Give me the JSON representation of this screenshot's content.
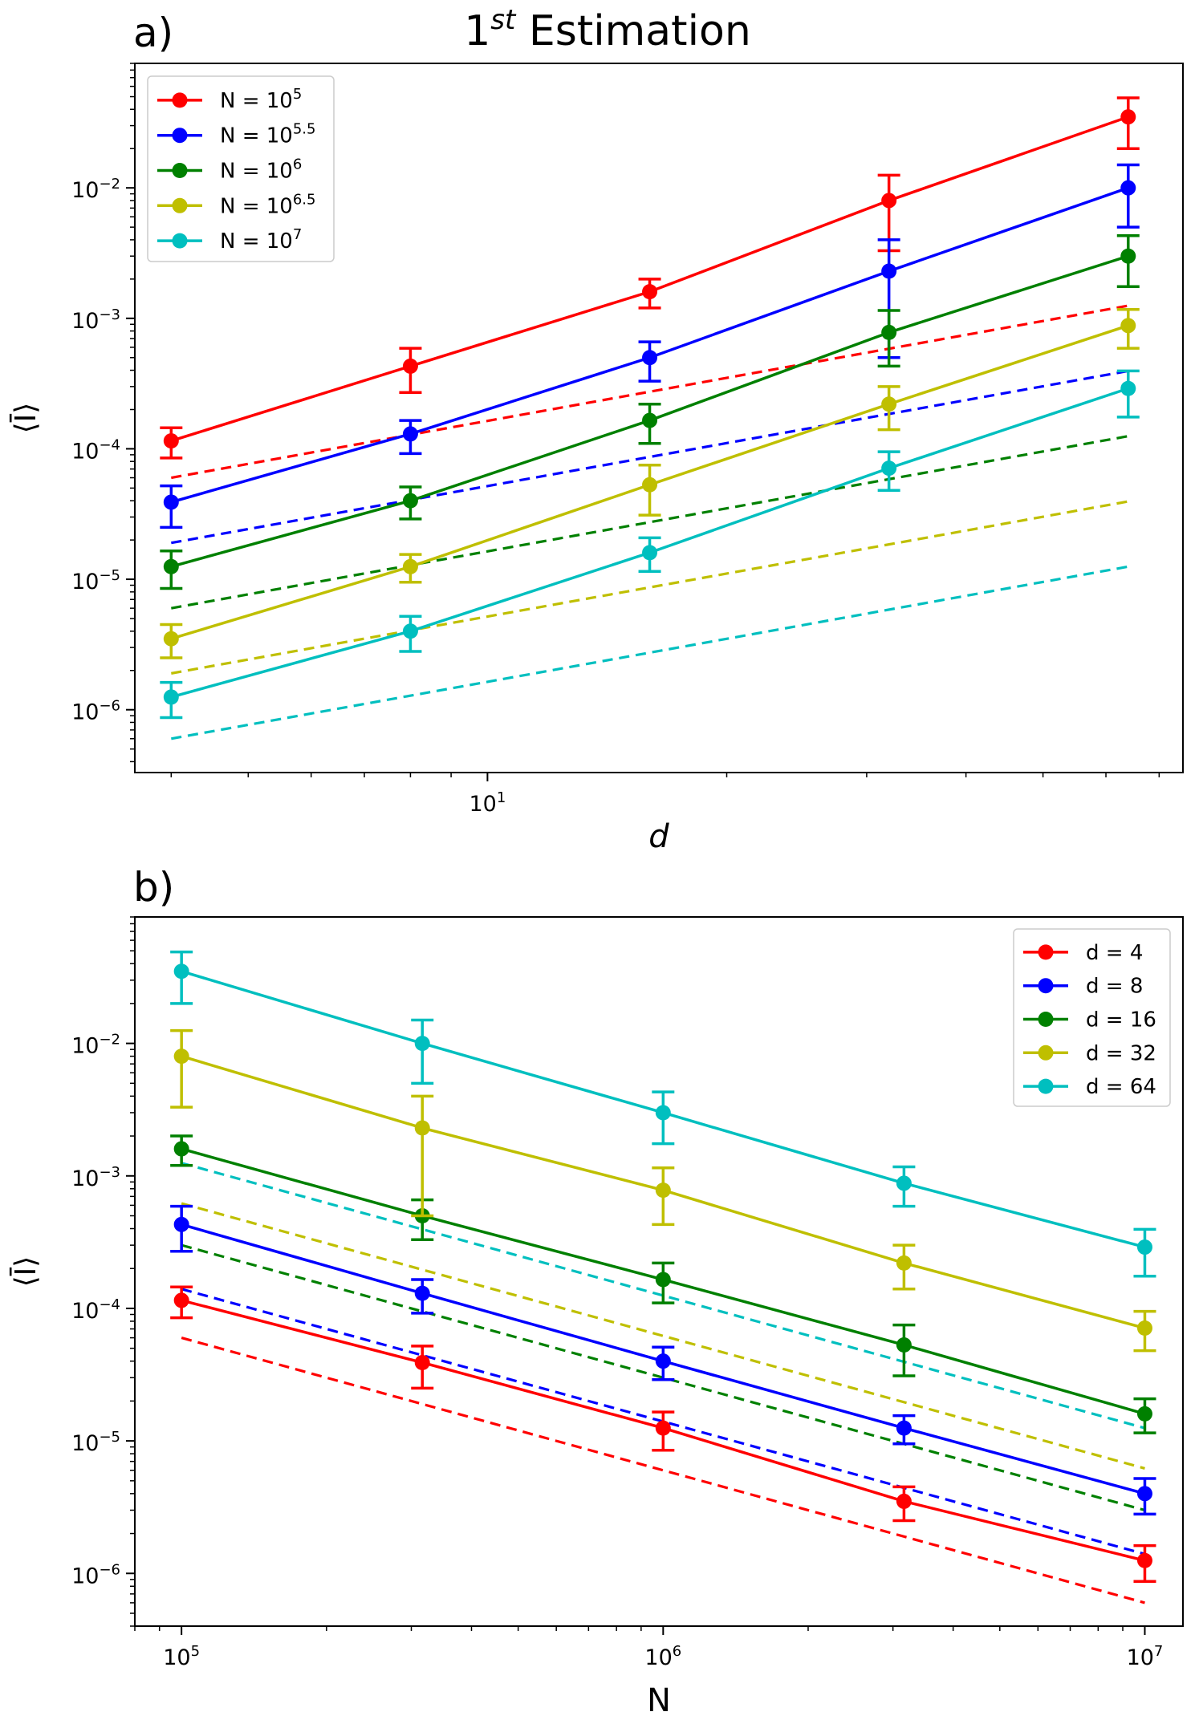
{
  "figure": {
    "title_base": "1",
    "title_sup": "st",
    "title_rest": " Estimation"
  },
  "chart_data": [
    {
      "type": "line",
      "panel_label": "a)",
      "xscale": "log",
      "yscale": "log",
      "xlim": [
        3.6,
        75
      ],
      "ylim": [
        3.3e-07,
        0.09
      ],
      "xlabel": "d",
      "ylabel": "⟨Ī⟩",
      "x": [
        4,
        8,
        16,
        32,
        64
      ],
      "x_ticks": [
        {
          "value": 10,
          "base": "10",
          "exp": "1"
        }
      ],
      "y_ticks": [
        {
          "value": 1e-06,
          "base": "10",
          "exp": "−6"
        },
        {
          "value": 1e-05,
          "base": "10",
          "exp": "−5"
        },
        {
          "value": 0.0001,
          "base": "10",
          "exp": "−4"
        },
        {
          "value": 0.001,
          "base": "10",
          "exp": "−3"
        },
        {
          "value": 0.01,
          "base": "10",
          "exp": "−2"
        }
      ],
      "legend_position": "top-left",
      "series": [
        {
          "name": "N = 10^5",
          "legend_base": "N = 10",
          "legend_exp": "5",
          "color": "#ff0000",
          "values": [
            0.000115,
            0.00043,
            0.0016,
            0.008,
            0.035
          ],
          "err_low": [
            8.5e-05,
            0.00027,
            0.0012,
            0.0033,
            0.02
          ],
          "err_high": [
            0.000145,
            0.00059,
            0.002,
            0.0125,
            0.049
          ],
          "reference": [
            6e-05,
            0.00125
          ]
        },
        {
          "name": "N = 10^5.5",
          "legend_base": "N = 10",
          "legend_exp": "5.5",
          "color": "#0000ff",
          "values": [
            3.9e-05,
            0.00013,
            0.0005,
            0.0023,
            0.01
          ],
          "err_low": [
            2.5e-05,
            9.2e-05,
            0.00033,
            0.0005,
            0.005
          ],
          "err_high": [
            5.2e-05,
            0.000165,
            0.00066,
            0.004,
            0.015
          ],
          "reference": [
            1.9e-05,
            0.000395
          ]
        },
        {
          "name": "N = 10^6",
          "legend_base": "N = 10",
          "legend_exp": "6",
          "color": "#008000",
          "values": [
            1.25e-05,
            4e-05,
            0.000165,
            0.00078,
            0.003
          ],
          "err_low": [
            8.5e-06,
            2.9e-05,
            0.00011,
            0.00043,
            0.00175
          ],
          "err_high": [
            1.65e-05,
            5.1e-05,
            0.00022,
            0.00115,
            0.0043
          ],
          "reference": [
            6e-06,
            0.000125
          ]
        },
        {
          "name": "N = 10^6.5",
          "legend_base": "N = 10",
          "legend_exp": "6.5",
          "color": "#bfbf00",
          "values": [
            3.5e-06,
            1.25e-05,
            5.3e-05,
            0.00022,
            0.00088
          ],
          "err_low": [
            2.5e-06,
            9.5e-06,
            3.1e-05,
            0.00014,
            0.00059
          ],
          "err_high": [
            4.5e-06,
            1.55e-05,
            7.5e-05,
            0.0003,
            0.00117
          ],
          "reference": [
            1.9e-06,
            3.95e-05
          ]
        },
        {
          "name": "N = 10^7",
          "legend_base": "N = 10",
          "legend_exp": "7",
          "color": "#00bfbf",
          "values": [
            1.25e-06,
            4e-06,
            1.6e-05,
            7.1e-05,
            0.00029
          ],
          "err_low": [
            8.7e-07,
            2.8e-06,
            1.15e-05,
            4.8e-05,
            0.000175
          ],
          "err_high": [
            1.62e-06,
            5.2e-06,
            2.08e-05,
            9.5e-05,
            0.000395
          ],
          "reference": [
            6e-07,
            1.25e-05
          ]
        }
      ]
    },
    {
      "type": "line",
      "panel_label": "b)",
      "xscale": "log",
      "yscale": "log",
      "xlim": [
        80000,
        12000000
      ],
      "ylim": [
        4e-07,
        0.09
      ],
      "xlabel": "N",
      "ylabel": "⟨Ī⟩",
      "x": [
        100000,
        316228,
        1000000,
        3162278,
        10000000
      ],
      "x_ticks": [
        {
          "value": 100000,
          "base": "10",
          "exp": "5"
        },
        {
          "value": 1000000,
          "base": "10",
          "exp": "6"
        },
        {
          "value": 10000000,
          "base": "10",
          "exp": "7"
        }
      ],
      "y_ticks": [
        {
          "value": 1e-06,
          "base": "10",
          "exp": "−6"
        },
        {
          "value": 1e-05,
          "base": "10",
          "exp": "−5"
        },
        {
          "value": 0.0001,
          "base": "10",
          "exp": "−4"
        },
        {
          "value": 0.001,
          "base": "10",
          "exp": "−3"
        },
        {
          "value": 0.01,
          "base": "10",
          "exp": "−2"
        }
      ],
      "legend_position": "top-right",
      "series": [
        {
          "name": "d = 4",
          "legend_label": "d = 4",
          "color": "#ff0000",
          "values": [
            0.000115,
            3.9e-05,
            1.25e-05,
            3.5e-06,
            1.25e-06
          ],
          "err_low": [
            8.5e-05,
            2.5e-05,
            8.5e-06,
            2.5e-06,
            8.7e-07
          ],
          "err_high": [
            0.000145,
            5.2e-05,
            1.65e-05,
            4.5e-06,
            1.62e-06
          ],
          "reference": [
            6e-05,
            6e-07
          ]
        },
        {
          "name": "d = 8",
          "legend_label": "d = 8",
          "color": "#0000ff",
          "values": [
            0.00043,
            0.00013,
            4e-05,
            1.25e-05,
            4e-06
          ],
          "err_low": [
            0.00027,
            9.2e-05,
            2.9e-05,
            9.5e-06,
            2.8e-06
          ],
          "err_high": [
            0.00059,
            0.000165,
            5.1e-05,
            1.55e-05,
            5.2e-06
          ],
          "reference": [
            0.00014,
            1.4e-06
          ]
        },
        {
          "name": "d = 16",
          "legend_label": "d = 16",
          "color": "#008000",
          "values": [
            0.0016,
            0.0005,
            0.000165,
            5.3e-05,
            1.6e-05
          ],
          "err_low": [
            0.0012,
            0.00033,
            0.00011,
            3.1e-05,
            1.15e-05
          ],
          "err_high": [
            0.002,
            0.00066,
            0.00022,
            7.5e-05,
            2.08e-05
          ],
          "reference": [
            0.0003,
            3e-06
          ]
        },
        {
          "name": "d = 32",
          "legend_label": "d = 32",
          "color": "#bfbf00",
          "values": [
            0.008,
            0.0023,
            0.00078,
            0.00022,
            7.1e-05
          ],
          "err_low": [
            0.0033,
            0.0005,
            0.00043,
            0.00014,
            4.8e-05
          ],
          "err_high": [
            0.0125,
            0.004,
            0.00115,
            0.0003,
            9.5e-05
          ],
          "reference": [
            0.00062,
            6.2e-06
          ]
        },
        {
          "name": "d = 64",
          "legend_label": "d = 64",
          "color": "#00bfbf",
          "values": [
            0.035,
            0.01,
            0.003,
            0.00088,
            0.00029
          ],
          "err_low": [
            0.02,
            0.005,
            0.00175,
            0.00059,
            0.000175
          ],
          "err_high": [
            0.049,
            0.015,
            0.0043,
            0.00117,
            0.000395
          ],
          "reference": [
            0.00125,
            1.25e-05
          ]
        }
      ]
    }
  ]
}
